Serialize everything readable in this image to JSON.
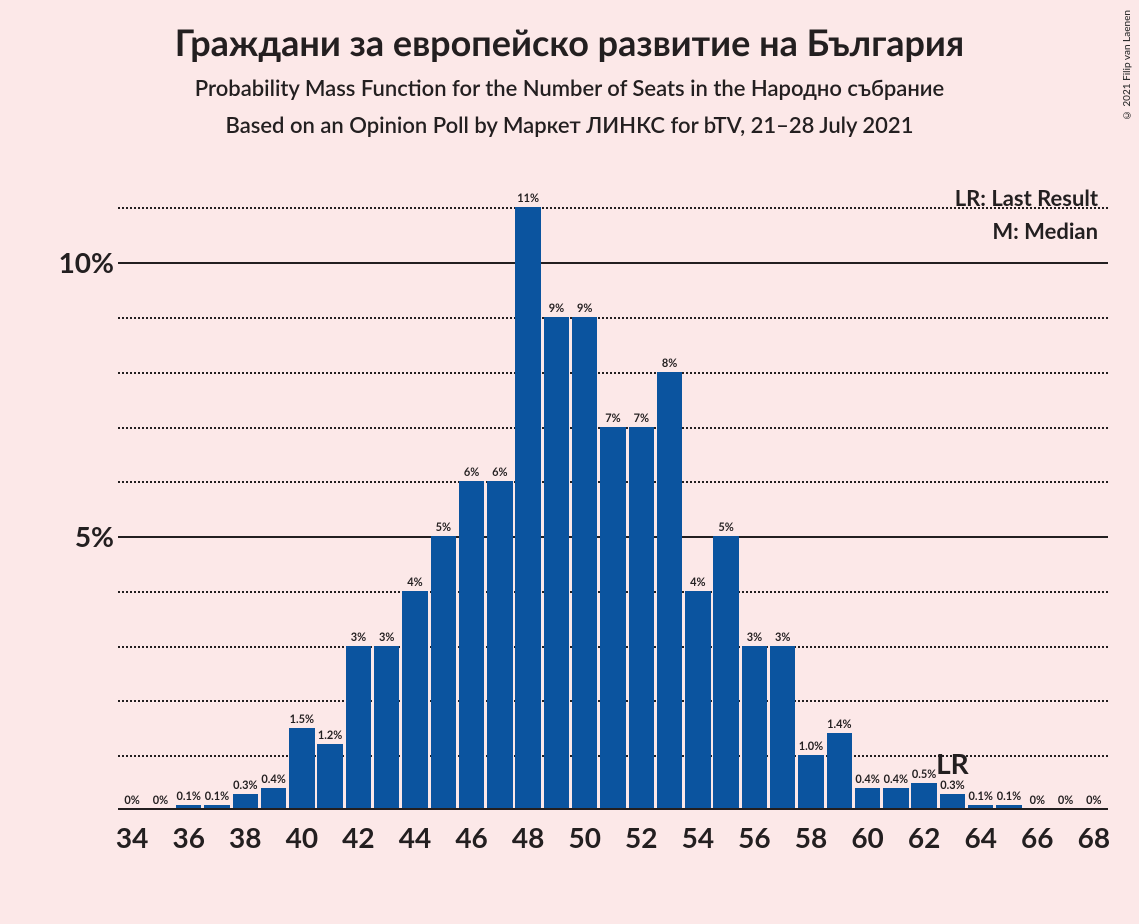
{
  "copyright": "© 2021 Filip van Laenen",
  "title_main": "Граждани за европейско развитие на България",
  "title_sub1": "Probability Mass Function for the Number of Seats in the Народно събрание",
  "title_sub2": "Based on an Opinion Poll by Маркет ЛИНКС for bTV, 21–28 July 2021",
  "legend_lr": "LR: Last Result",
  "legend_m": "M: Median",
  "chart": {
    "type": "bar",
    "bar_color": "#0b549f",
    "background_color": "#fce8e8",
    "grid_color": "#231f20",
    "text_color": "#231f20",
    "y_max": 11.5,
    "y_ticks_major": [
      5,
      10
    ],
    "y_ticks_minor": [
      1,
      2,
      3,
      4,
      6,
      7,
      8,
      9,
      11
    ],
    "y_tick_labels": {
      "5": "5%",
      "10": "10%"
    },
    "x_tick_labels": [
      34,
      36,
      38,
      40,
      42,
      44,
      46,
      48,
      50,
      52,
      54,
      56,
      58,
      60,
      62,
      64,
      66,
      68
    ],
    "median_seat": 50,
    "median_label": "M",
    "lr_seat": 63,
    "lr_label": "LR",
    "bars": [
      {
        "x": 34,
        "v": 0.0,
        "lbl": "0%"
      },
      {
        "x": 35,
        "v": 0.0,
        "lbl": "0%"
      },
      {
        "x": 36,
        "v": 0.1,
        "lbl": "0.1%"
      },
      {
        "x": 37,
        "v": 0.1,
        "lbl": "0.1%"
      },
      {
        "x": 38,
        "v": 0.3,
        "lbl": "0.3%"
      },
      {
        "x": 39,
        "v": 0.4,
        "lbl": "0.4%"
      },
      {
        "x": 40,
        "v": 1.5,
        "lbl": "1.5%"
      },
      {
        "x": 41,
        "v": 1.2,
        "lbl": "1.2%"
      },
      {
        "x": 42,
        "v": 3.0,
        "lbl": "3%"
      },
      {
        "x": 43,
        "v": 3.0,
        "lbl": "3%"
      },
      {
        "x": 44,
        "v": 4.0,
        "lbl": "4%"
      },
      {
        "x": 45,
        "v": 5.0,
        "lbl": "5%"
      },
      {
        "x": 46,
        "v": 6.0,
        "lbl": "6%"
      },
      {
        "x": 47,
        "v": 6.0,
        "lbl": "6%"
      },
      {
        "x": 48,
        "v": 11.0,
        "lbl": "11%"
      },
      {
        "x": 49,
        "v": 9.0,
        "lbl": "9%"
      },
      {
        "x": 50,
        "v": 9.0,
        "lbl": "9%"
      },
      {
        "x": 51,
        "v": 7.0,
        "lbl": "7%"
      },
      {
        "x": 52,
        "v": 7.0,
        "lbl": "7%"
      },
      {
        "x": 53,
        "v": 8.0,
        "lbl": "8%"
      },
      {
        "x": 54,
        "v": 4.0,
        "lbl": "4%"
      },
      {
        "x": 55,
        "v": 5.0,
        "lbl": "5%"
      },
      {
        "x": 56,
        "v": 3.0,
        "lbl": "3%"
      },
      {
        "x": 57,
        "v": 3.0,
        "lbl": "3%"
      },
      {
        "x": 58,
        "v": 1.0,
        "lbl": "1.0%"
      },
      {
        "x": 59,
        "v": 1.4,
        "lbl": "1.4%"
      },
      {
        "x": 60,
        "v": 0.4,
        "lbl": "0.4%"
      },
      {
        "x": 61,
        "v": 0.4,
        "lbl": "0.4%"
      },
      {
        "x": 62,
        "v": 0.5,
        "lbl": "0.5%"
      },
      {
        "x": 63,
        "v": 0.3,
        "lbl": "0.3%"
      },
      {
        "x": 64,
        "v": 0.1,
        "lbl": "0.1%"
      },
      {
        "x": 65,
        "v": 0.1,
        "lbl": "0.1%"
      },
      {
        "x": 66,
        "v": 0.0,
        "lbl": "0%"
      },
      {
        "x": 67,
        "v": 0.0,
        "lbl": "0%"
      },
      {
        "x": 68,
        "v": 0.0,
        "lbl": "0%"
      }
    ]
  }
}
